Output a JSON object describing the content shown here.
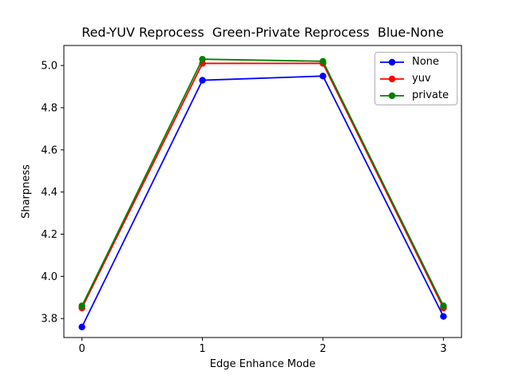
{
  "chart_data": {
    "type": "line",
    "title": "Red-YUV Reprocess  Green-Private Reprocess  Blue-None",
    "xlabel": "Edge Enhance Mode",
    "ylabel": "Sharpness",
    "x": [
      0,
      1,
      2,
      3
    ],
    "series": [
      {
        "name": "None",
        "color": "#0000ff",
        "values": [
          3.76,
          4.93,
          4.95,
          3.81
        ]
      },
      {
        "name": "yuv",
        "color": "#ff0000",
        "values": [
          3.85,
          5.01,
          5.01,
          3.85
        ]
      },
      {
        "name": "private",
        "color": "#008000",
        "values": [
          3.86,
          5.03,
          5.02,
          3.86
        ]
      }
    ],
    "xlim": [
      -0.15,
      3.15
    ],
    "ylim": [
      3.71,
      5.095
    ],
    "xtick_values": [
      0,
      1,
      2,
      3
    ],
    "xtick_labels": [
      "0",
      "1",
      "2",
      "3"
    ],
    "ytick_values": [
      3.8,
      4.0,
      4.2,
      4.4,
      4.6,
      4.8,
      5.0
    ],
    "ytick_labels": [
      "3.8",
      "4.0",
      "4.2",
      "4.4",
      "4.6",
      "4.8",
      "5.0"
    ],
    "legend_position": "upper-right",
    "grid": false,
    "marker": "circle",
    "axis_color": "#000000",
    "background": "#ffffff"
  }
}
